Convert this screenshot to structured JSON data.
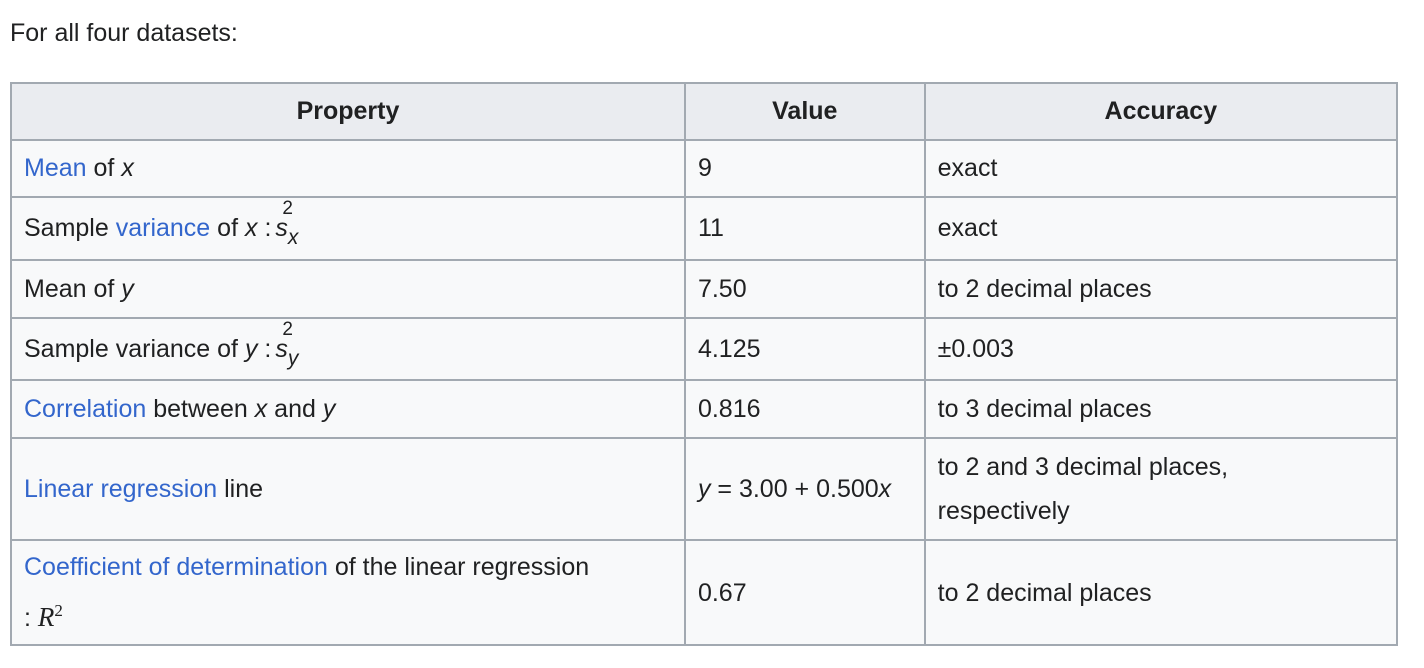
{
  "intro": "For all four datasets:",
  "headers": {
    "property": "Property",
    "value": "Value",
    "accuracy": "Accuracy"
  },
  "rows": [
    {
      "link": "Mean",
      "text": "of",
      "var": "x",
      "value": "9",
      "accuracy": "exact"
    },
    {
      "pre": "Sample",
      "link": "variance",
      "text": "of",
      "var": "x",
      "colon": ":",
      "sym": "s",
      "sup": "2",
      "sub": "x",
      "value": "11",
      "accuracy": "exact"
    },
    {
      "text": "Mean of",
      "var": "y",
      "value": "7.50",
      "accuracy": "to 2 decimal places"
    },
    {
      "text": "Sample variance of",
      "var": "y",
      "colon": ":",
      "sym": "s",
      "sup": "2",
      "sub": "y",
      "value": "4.125",
      "accuracy": "±0.003"
    },
    {
      "link": "Correlation",
      "text1": "between",
      "var1": "x",
      "text2": "and",
      "var2": "y",
      "value": "0.816",
      "accuracy": "to 3 decimal places"
    },
    {
      "link": "Linear regression",
      "text": "line",
      "value_var1": "y",
      "value_mid": "= 3.00 + 0.500",
      "value_var2": "x",
      "accuracy_line1": "to 2 and 3 decimal places,",
      "accuracy_line2": "respectively"
    },
    {
      "link": "Coefficient of determination",
      "text": "of the linear regression",
      "colon": ":",
      "sym": "R",
      "sup": "2",
      "value": "0.67",
      "accuracy": "to 2 decimal places"
    }
  ]
}
